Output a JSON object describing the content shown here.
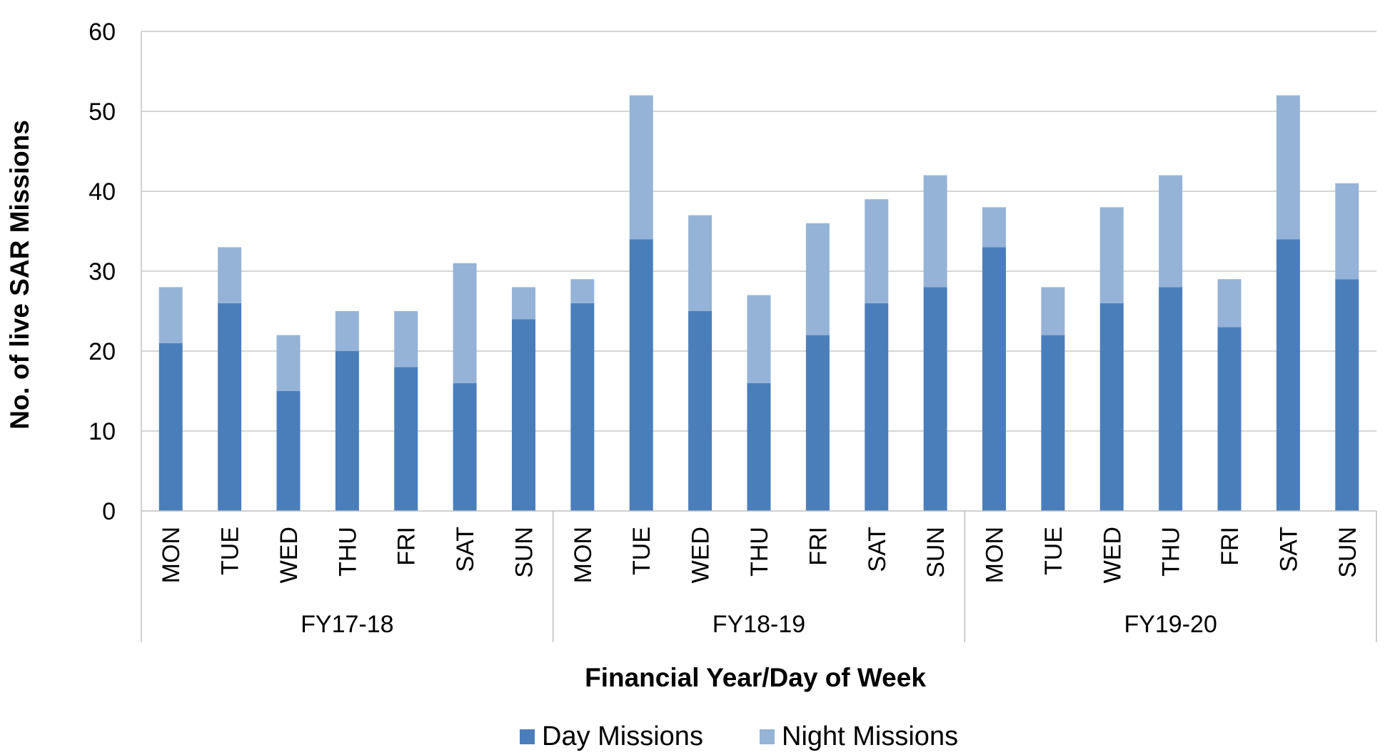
{
  "chart_data": {
    "type": "bar",
    "stacked": true,
    "title": "",
    "xlabel": "Financial Year/Day of Week",
    "ylabel": "No. of live SAR Missions",
    "ylim": [
      0,
      60
    ],
    "yticks": [
      0,
      10,
      20,
      30,
      40,
      50,
      60
    ],
    "grid": true,
    "legend_position": "bottom",
    "groups": [
      {
        "label": "FY17-18",
        "categories": [
          "MON",
          "TUE",
          "WED",
          "THU",
          "FRI",
          "SAT",
          "SUN"
        ]
      },
      {
        "label": "FY18-19",
        "categories": [
          "MON",
          "TUE",
          "WED",
          "THU",
          "FRI",
          "SAT",
          "SUN"
        ]
      },
      {
        "label": "FY19-20",
        "categories": [
          "MON",
          "TUE",
          "WED",
          "THU",
          "FRI",
          "SAT",
          "SUN"
        ]
      }
    ],
    "series": [
      {
        "name": "Day Missions",
        "color": "#4a7ebb",
        "values": [
          21,
          26,
          15,
          20,
          18,
          16,
          24,
          26,
          34,
          25,
          16,
          22,
          26,
          28,
          33,
          22,
          26,
          28,
          23,
          34,
          29
        ]
      },
      {
        "name": "Night Missions",
        "color": "#95b3d7",
        "values": [
          7,
          7,
          7,
          5,
          7,
          15,
          4,
          3,
          18,
          12,
          11,
          14,
          13,
          14,
          5,
          6,
          12,
          14,
          6,
          18,
          12
        ]
      }
    ]
  }
}
